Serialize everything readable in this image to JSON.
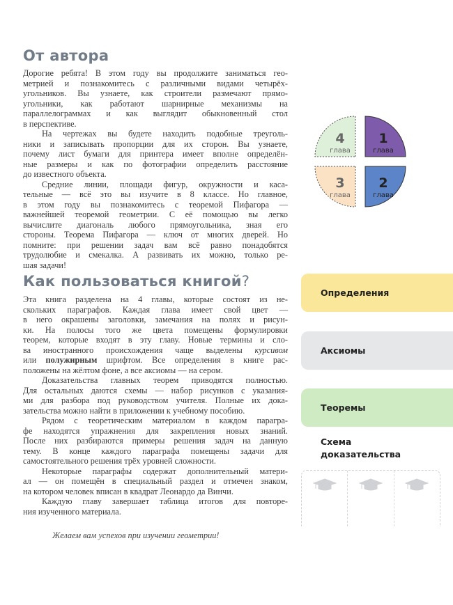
{
  "section1": {
    "title": "От автора",
    "paragraphs": [
      [
        "Дорогие ребята! В этом году вы продолжите заниматься гео-",
        "метрией и познакомитесь с различными видами четырёх-",
        "угольников. Вы узнаете, как строители размечают прямо-",
        "угольники, как работают шарнирные механизмы на",
        "параллелограммах и как выглядит обыкновенный стол",
        "в перспективе."
      ],
      [
        "На чертежах вы будете находить подобные треуголь-",
        "ники и записывать пропорции для их сторон. Вы узнаете,",
        "почему лист бумаги для принтера имеет вполне определён-",
        "ные размеры и как по фотографии определить расстояние",
        "до известного объекта."
      ],
      [
        "Средние линии, площади фигур, окружности и каса-",
        "тельные — всё это вы изучите в 8 классе. Но главное,",
        "в этом году вы познакомитесь с теоремой Пифагора —",
        "важнейшей теоремой геометрии. С её помощью вы легко",
        "вычислите диагональ любого прямоугольника, зная его",
        "стороны. Теорема Пифагора — ключ от многих дверей. Но",
        "помните: при решении задач вам всё равно понадобятся",
        "трудолюбие и смекалка. А развивать их можно, только ре-",
        "шая задачи!"
      ]
    ]
  },
  "section2": {
    "title": "Как пользоваться книгой",
    "title_mark": "?",
    "p1": {
      "lines": [
        "Эта книга разделена на 4 главы, которые состоят из не-",
        "скольких параграфов. Каждая глава имеет свой цвет —",
        "в него окрашены заголовки, замечания на полях и рисун-",
        "ки. На полосы того же цвета помещены формулировки",
        "теорем, которые входят в эту главу. Новые термины и сло-"
      ],
      "line6_a": "ва иностранного происхождения чаще выделены ",
      "line6_italic": "курсивом",
      "line7_a": "или ",
      "line7_bold": "полужирным",
      "line7_b": " шрифтом. Все определения в книге рас-",
      "line8": "положены на жёлтом фоне, а все аксиомы — на сером."
    },
    "paragraphs": [
      [
        "Доказательства главных теорем приводятся полностью.",
        "Для остальных даются схемы — набор рисунков с указания-",
        "ми для разбора под руководством учителя. Полные их дока-",
        "зательства можно найти в приложении к учебному пособию."
      ],
      [
        "Рядом с теоретическим материалом в каждом парагра-",
        "фе находятся упражнения для закрепления новых знаний.",
        "После них разбираются примеры решения задач на данную",
        "тему. В конце каждого параграфа помещены задачи для",
        "самостоятельного решения трёх уровней сложности."
      ],
      [
        "Некоторые параграфы содержат дополнительный матери-",
        "ал — он помещён в специальный раздел и отмечен знаком,",
        "на котором человек вписан в квадрат Леонардо да Винчи."
      ],
      [
        "Каждую главу завершает таблица итогов для повторе-",
        "ния изученного материала."
      ]
    ],
    "wish": "Желаем вам успехов при изучении геометрии!"
  },
  "chapters": [
    {
      "num": "1",
      "label": "глава",
      "color": "#7e5bab"
    },
    {
      "num": "2",
      "label": "глава",
      "color": "#5b84c9"
    },
    {
      "num": "3",
      "label": "глава",
      "color": "#fbe2c4"
    },
    {
      "num": "4",
      "label": "глава",
      "color": "#dff0da"
    }
  ],
  "legend": {
    "definitions": {
      "label": "Определения",
      "color": "#fbe79a"
    },
    "axioms": {
      "label": "Аксиомы",
      "color": "#e6e7e9"
    },
    "theorems": {
      "label": "Теоремы",
      "color": "#cfebc4"
    },
    "scheme": {
      "label_line1": "Схема",
      "label_line2": "доказательства",
      "icons": [
        "graduation-cap-icon",
        "graduation-cap-icon",
        "graduation-cap-icon"
      ]
    }
  }
}
